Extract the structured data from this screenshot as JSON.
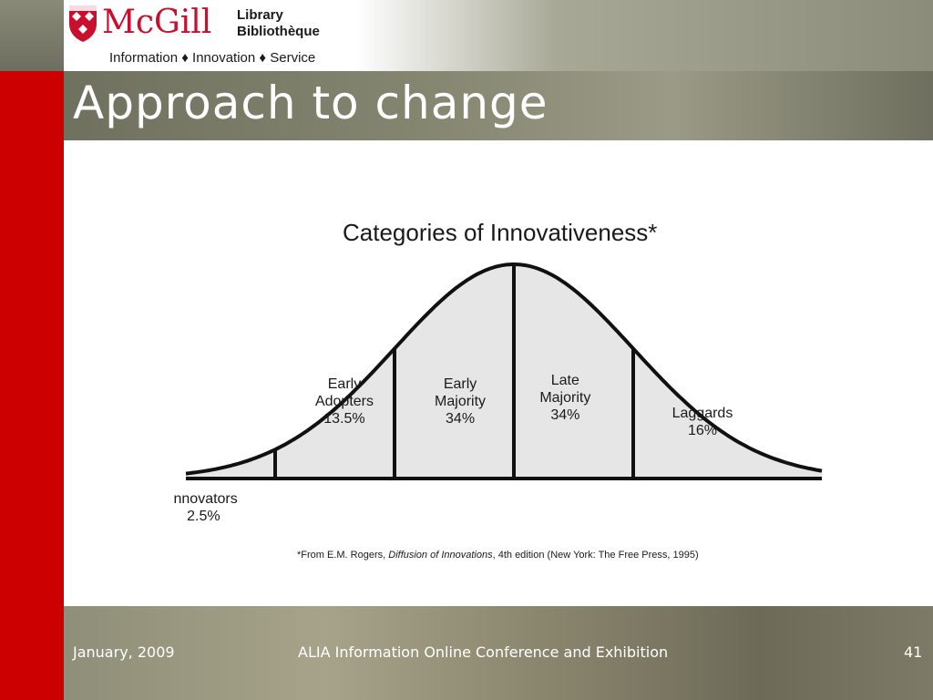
{
  "slide": {
    "title": "Approach to change",
    "footer_date": "January, 2009",
    "footer_event": "ALIA Information Online Conference and Exhibition",
    "page_number": "41"
  },
  "logo": {
    "name": "McGill",
    "line1": "Library",
    "line2": "Bibliothèque",
    "tagline": "Information ♦ Innovation ♦ Service"
  },
  "colors": {
    "accent_red": "#cc0000",
    "header_band": "#7e7f6b",
    "curve_fill": "#e6e6e6"
  },
  "chart_data": {
    "type": "area",
    "title": "Categories of Innovativeness*",
    "distribution": "normal (bell curve)",
    "categories": [
      {
        "name": "Innovators",
        "value": "2.5%",
        "lines": [
          "Innovators",
          "2.5%"
        ]
      },
      {
        "name": "Early Adopters",
        "value": "13.5%",
        "lines": [
          "Early",
          "Adopters",
          "13.5%"
        ]
      },
      {
        "name": "Early Majority",
        "value": "34%",
        "lines": [
          "Early",
          "Majority",
          "34%"
        ]
      },
      {
        "name": "Late Majority",
        "value": "34%",
        "lines": [
          "Late",
          "Majority",
          "34%"
        ]
      },
      {
        "name": "Laggards",
        "value": "16%",
        "lines": [
          "Laggards",
          "16%"
        ]
      }
    ],
    "boundaries_sd": [
      -2,
      -1,
      0,
      1
    ],
    "footnote": {
      "prefix": "*From E.M. Rogers, ",
      "book": "Diffusion of Innovations",
      "suffix": ", 4th edition (New York: The Free Press, 1995)"
    }
  }
}
